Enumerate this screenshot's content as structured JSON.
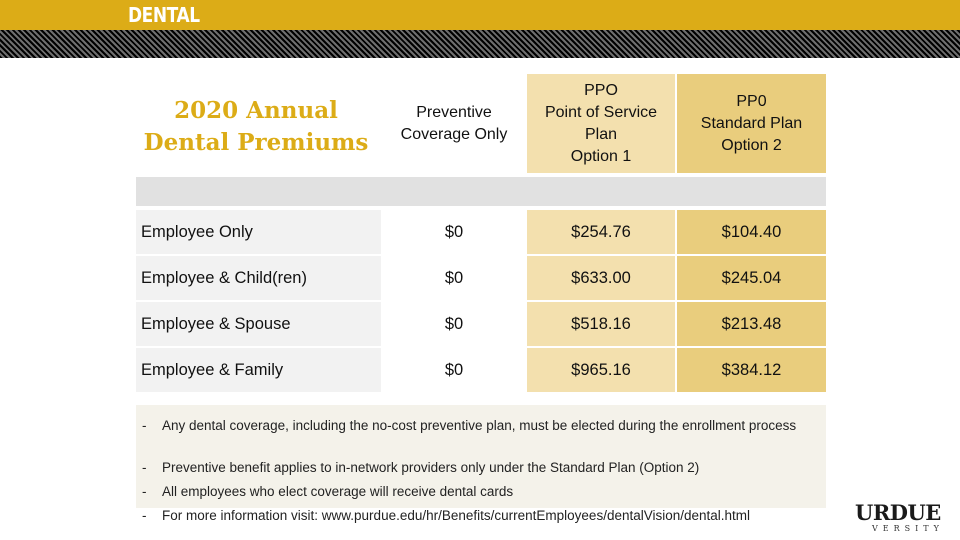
{
  "header": {
    "section_label": "DENTAL"
  },
  "title": {
    "line1": "2020 Annual",
    "line2": "Dental Premiums"
  },
  "columns": {
    "preventive": {
      "line1": "Preventive",
      "line2": "Coverage Only"
    },
    "ppo_option1": {
      "line1": "PPO",
      "line2": "Point of Service",
      "line3": "Plan",
      "line4": "Option 1"
    },
    "ppo_option2": {
      "line1": "PP0",
      "line2": "Standard Plan",
      "line3": "Option 2"
    }
  },
  "rows": [
    {
      "label": "Employee Only",
      "preventive": "$0",
      "ppo_option1": "$254.76",
      "ppo_option2": "$104.40"
    },
    {
      "label": "Employee & Child(ren)",
      "preventive": "$0",
      "ppo_option1": "$633.00",
      "ppo_option2": "$245.04"
    },
    {
      "label": "Employee & Spouse",
      "preventive": "$0",
      "ppo_option1": "$518.16",
      "ppo_option2": "$213.48"
    },
    {
      "label": "Employee & Family",
      "preventive": "$0",
      "ppo_option1": "$965.16",
      "ppo_option2": "$384.12"
    }
  ],
  "notes": [
    {
      "bullet": "-",
      "text": "Any dental coverage, including the no-cost preventive plan, must be elected during the enrollment process"
    },
    {
      "bullet": "-",
      "text": "Preventive benefit applies to in-network providers only under the Standard Plan (Option 2)"
    },
    {
      "bullet": "-",
      "text": "All employees who elect coverage will receive dental cards"
    },
    {
      "bullet": "-",
      "text": "For more information visit: www.purdue.edu/hr/Benefits/currentEmployees/dentalVision/dental.html"
    }
  ],
  "logo": {
    "main": "URDUE",
    "sub": "VERSITY"
  },
  "colors": {
    "gold": "#dcac17",
    "light_gold": "#f3e0ae",
    "mid_gold": "#e9cd7d",
    "gray": "#e1e1e1"
  }
}
